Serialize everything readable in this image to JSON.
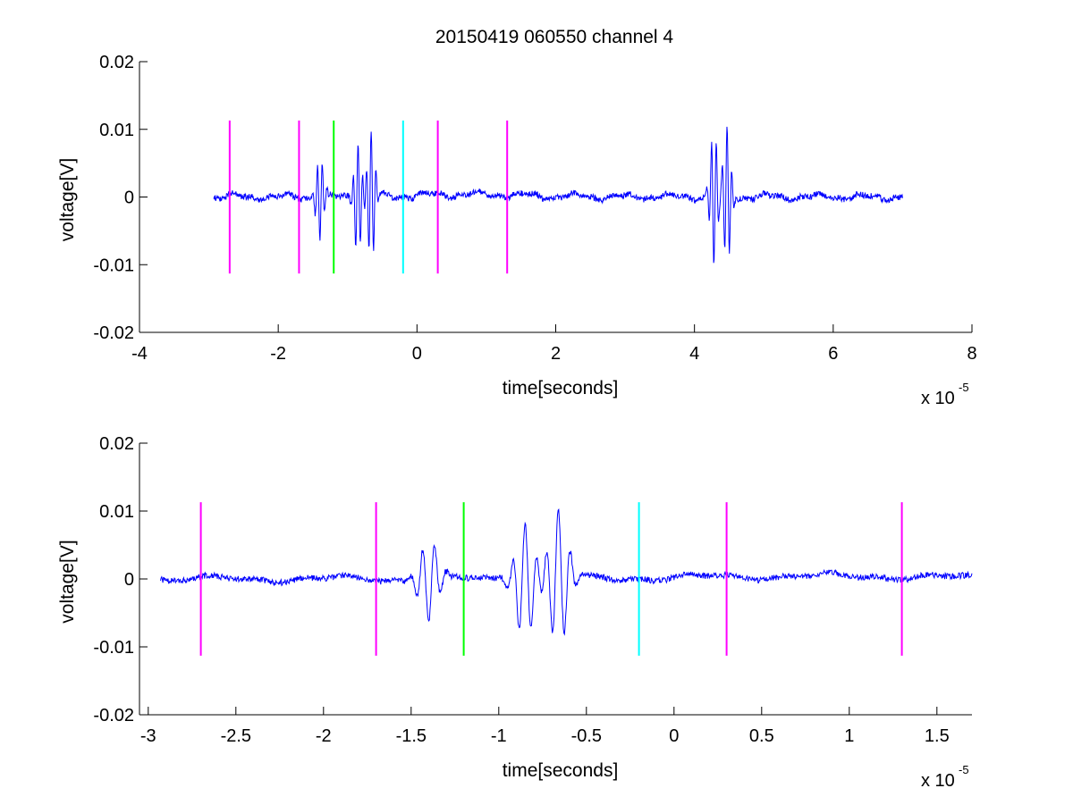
{
  "chart_data": [
    {
      "type": "line",
      "title": "20150419 060550 channel 4",
      "xlabel": "time[seconds]",
      "ylabel": "voltage[V]",
      "x_exponent_label": {
        "base": "x 10",
        "exponent": "-5"
      },
      "xlim": [
        -4,
        8
      ],
      "ylim": [
        -0.02,
        0.02
      ],
      "x_scale": 1e-05,
      "x_ticks": [
        -4,
        -2,
        0,
        2,
        4,
        6,
        8
      ],
      "x_tick_labels": [
        "-4",
        "-2",
        "0",
        "2",
        "4",
        "6",
        "8"
      ],
      "y_ticks": [
        -0.02,
        -0.01,
        0,
        0.01,
        0.02
      ],
      "y_tick_labels": [
        "-0.02",
        "-0.01",
        "0",
        "0.01",
        "0.02"
      ],
      "grid": false,
      "signal": {
        "color": "#0000ff",
        "x_range": [
          -2.93,
          7.0
        ],
        "bursts": [
          {
            "x": -1.4,
            "amplitude": 0.006,
            "polarity": -1
          },
          {
            "x": -0.85,
            "amplitude": 0.0085,
            "polarity": 1
          },
          {
            "x": -0.66,
            "amplitude": 0.01,
            "polarity": 1
          },
          {
            "x": 4.28,
            "amplitude": 0.01,
            "polarity": -1
          },
          {
            "x": 4.47,
            "amplitude": 0.0105,
            "polarity": 1
          }
        ]
      },
      "markers": [
        {
          "x": -2.7,
          "color": "#ff00ff",
          "y_range": [
            -0.0113,
            0.0113
          ]
        },
        {
          "x": -1.7,
          "color": "#ff00ff",
          "y_range": [
            -0.0113,
            0.0113
          ]
        },
        {
          "x": -1.2,
          "color": "#00ff00",
          "y_range": [
            -0.0113,
            0.0113
          ]
        },
        {
          "x": -0.2,
          "color": "#00ffff",
          "y_range": [
            -0.0113,
            0.0113
          ]
        },
        {
          "x": 0.3,
          "color": "#ff00ff",
          "y_range": [
            -0.0113,
            0.0113
          ]
        },
        {
          "x": 1.3,
          "color": "#ff00ff",
          "y_range": [
            -0.0113,
            0.0113
          ]
        }
      ]
    },
    {
      "type": "line",
      "title": "",
      "xlabel": "time[seconds]",
      "ylabel": "voltage[V]",
      "x_exponent_label": {
        "base": "x 10",
        "exponent": "-5"
      },
      "xlim": [
        -3.05,
        1.7
      ],
      "ylim": [
        -0.02,
        0.02
      ],
      "x_scale": 1e-05,
      "x_ticks": [
        -3,
        -2.5,
        -2,
        -1.5,
        -1,
        -0.5,
        0,
        0.5,
        1,
        1.5
      ],
      "x_tick_labels": [
        "-3",
        "-2.5",
        "-2",
        "-1.5",
        "-1",
        "-0.5",
        "0",
        "0.5",
        "1",
        "1.5"
      ],
      "y_ticks": [
        -0.02,
        -0.01,
        0,
        0.01,
        0.02
      ],
      "y_tick_labels": [
        "-0.02",
        "-0.01",
        "0",
        "0.01",
        "0.02"
      ],
      "grid": false,
      "signal": {
        "color": "#0000ff",
        "x_range": [
          -2.93,
          1.7
        ],
        "bursts": [
          {
            "x": -1.4,
            "amplitude": 0.006,
            "polarity": -1
          },
          {
            "x": -0.85,
            "amplitude": 0.0085,
            "polarity": 1
          },
          {
            "x": -0.66,
            "amplitude": 0.01,
            "polarity": 1
          }
        ]
      },
      "markers": [
        {
          "x": -2.7,
          "color": "#ff00ff",
          "y_range": [
            -0.0113,
            0.0113
          ]
        },
        {
          "x": -1.7,
          "color": "#ff00ff",
          "y_range": [
            -0.0113,
            0.0113
          ]
        },
        {
          "x": -1.2,
          "color": "#00ff00",
          "y_range": [
            -0.0113,
            0.0113
          ]
        },
        {
          "x": -0.2,
          "color": "#00ffff",
          "y_range": [
            -0.0113,
            0.0113
          ]
        },
        {
          "x": 0.3,
          "color": "#ff00ff",
          "y_range": [
            -0.0113,
            0.0113
          ]
        },
        {
          "x": 1.3,
          "color": "#ff00ff",
          "y_range": [
            -0.0113,
            0.0113
          ]
        }
      ]
    }
  ]
}
